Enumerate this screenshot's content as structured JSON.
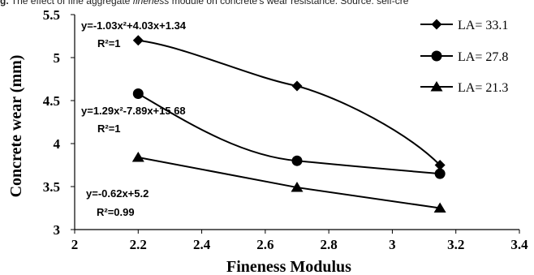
{
  "caption": {
    "lead": "g.",
    "plain": " The effect of fine aggregate ",
    "italic": "fineness",
    "rest": " module on concrete's wear resistance. Source: self-cre"
  },
  "chart_data": {
    "type": "line",
    "xlabel": "Fineness Modulus",
    "ylabel": "Concrete wear (mm)",
    "xlim": [
      2,
      3.4
    ],
    "ylim": [
      3,
      5.5
    ],
    "xticks": [
      "2",
      "2.2",
      "2.4",
      "2.6",
      "2.8",
      "3",
      "3.2",
      "3.4"
    ],
    "yticks": [
      "3",
      "3.5",
      "4",
      "4.5",
      "5",
      "5.5"
    ],
    "grid": false,
    "legend_position": "top-right",
    "series": [
      {
        "name": "LA= 33.1",
        "marker": "diamond",
        "x": [
          2.2,
          2.7,
          3.15
        ],
        "y": [
          5.2,
          4.67,
          3.75
        ],
        "equation": "y=-1.03x²+4.03x+1.34",
        "r2": "R²=1"
      },
      {
        "name": "LA= 27.8",
        "marker": "circle",
        "x": [
          2.2,
          2.7,
          3.15
        ],
        "y": [
          4.58,
          3.8,
          3.65
        ],
        "equation": "y=1.29x²-7.89x+15.68",
        "r2": "R²=1"
      },
      {
        "name": "LA= 21.3",
        "marker": "triangle",
        "x": [
          2.2,
          2.7,
          3.15
        ],
        "y": [
          3.84,
          3.49,
          3.25
        ],
        "equation": "y=-0.62x+5.2",
        "r2": "R²=0.99"
      }
    ]
  }
}
